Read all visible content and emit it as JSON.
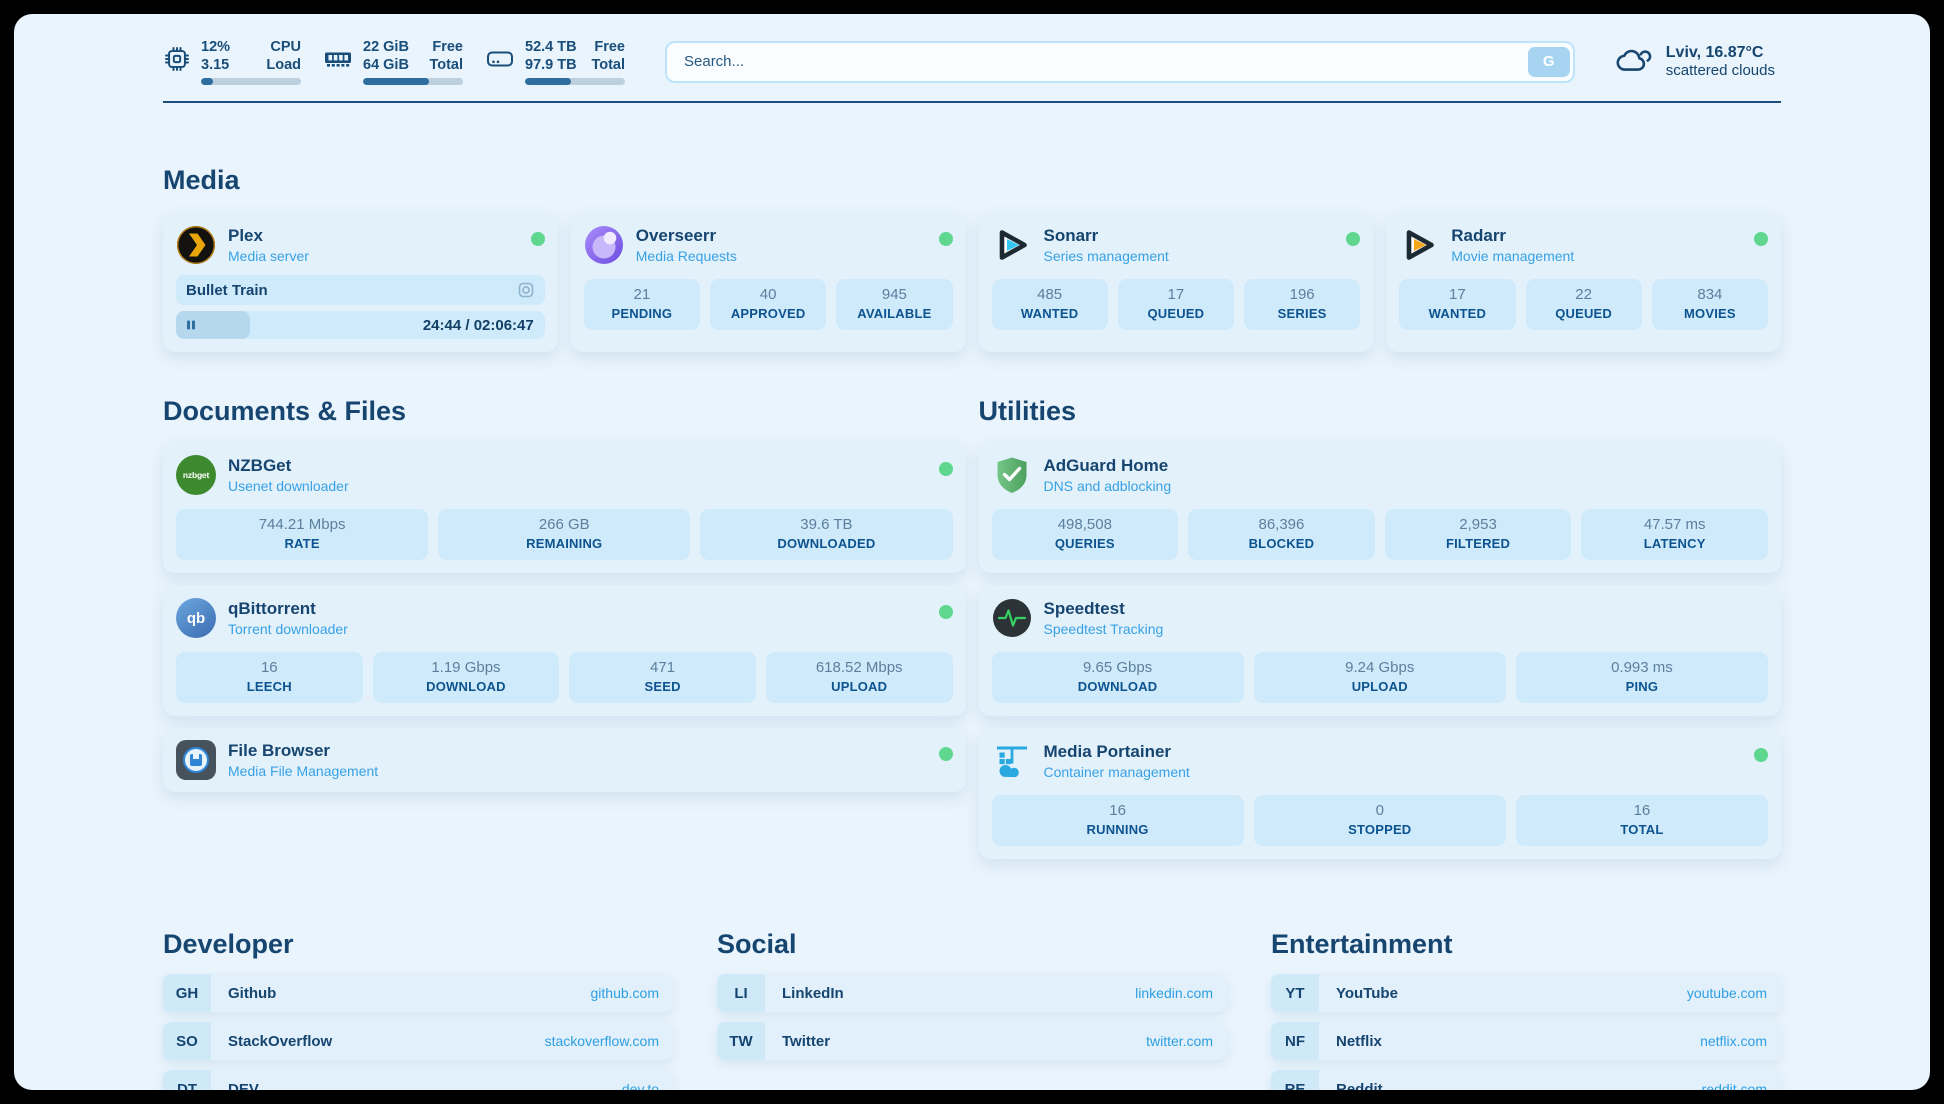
{
  "colors": {
    "status_online": "#5fd78f",
    "accent_blue": "#2e9fe0",
    "navy": "#16456f"
  },
  "header": {
    "metrics": [
      {
        "id": "cpu",
        "icon": "cpu-icon",
        "values": [
          "12%",
          "3.15"
        ],
        "labels": [
          "CPU",
          "Load"
        ],
        "progress": 12
      },
      {
        "id": "ram",
        "icon": "ram-icon",
        "values": [
          "22 GiB",
          "64 GiB"
        ],
        "labels": [
          "Free",
          "Total"
        ],
        "progress": 66
      },
      {
        "id": "disk",
        "icon": "disk-icon",
        "values": [
          "52.4 TB",
          "97.9 TB"
        ],
        "labels": [
          "Free",
          "Total"
        ],
        "progress": 46
      }
    ],
    "search": {
      "placeholder": "Search...",
      "engine": "G"
    },
    "weather": {
      "location": "Lviv, 16.87°C",
      "condition": "scattered clouds"
    }
  },
  "media": {
    "title": "Media",
    "plex": {
      "name": "Plex",
      "subtitle": "Media server",
      "now_playing": "Bullet Train",
      "time": "24:44 / 02:06:47",
      "progress_percent": 20
    },
    "overseerr": {
      "name": "Overseerr",
      "subtitle": "Media Requests",
      "stats": [
        {
          "value": "21",
          "label": "PENDING"
        },
        {
          "value": "40",
          "label": "APPROVED"
        },
        {
          "value": "945",
          "label": "AVAILABLE"
        }
      ]
    },
    "sonarr": {
      "name": "Sonarr",
      "subtitle": "Series management",
      "stats": [
        {
          "value": "485",
          "label": "WANTED"
        },
        {
          "value": "17",
          "label": "QUEUED"
        },
        {
          "value": "196",
          "label": "SERIES"
        }
      ]
    },
    "radarr": {
      "name": "Radarr",
      "subtitle": "Movie management",
      "stats": [
        {
          "value": "17",
          "label": "WANTED"
        },
        {
          "value": "22",
          "label": "QUEUED"
        },
        {
          "value": "834",
          "label": "MOVIES"
        }
      ]
    }
  },
  "documents": {
    "title": "Documents & Files",
    "nzbget": {
      "name": "NZBGet",
      "subtitle": "Usenet downloader",
      "icon_text": "nzbget",
      "stats": [
        {
          "value": "744.21 Mbps",
          "label": "RATE"
        },
        {
          "value": "266 GB",
          "label": "REMAINING"
        },
        {
          "value": "39.6 TB",
          "label": "DOWNLOADED"
        }
      ]
    },
    "qbittorrent": {
      "name": "qBittorrent",
      "subtitle": "Torrent downloader",
      "icon_text": "qb",
      "stats": [
        {
          "value": "16",
          "label": "LEECH"
        },
        {
          "value": "1.19 Gbps",
          "label": "DOWNLOAD"
        },
        {
          "value": "471",
          "label": "SEED"
        },
        {
          "value": "618.52 Mbps",
          "label": "UPLOAD"
        }
      ]
    },
    "filebrowser": {
      "name": "File Browser",
      "subtitle": "Media File Management"
    }
  },
  "utilities": {
    "title": "Utilities",
    "adguard": {
      "name": "AdGuard Home",
      "subtitle": "DNS and adblocking",
      "stats": [
        {
          "value": "498,508",
          "label": "QUERIES"
        },
        {
          "value": "86,396",
          "label": "BLOCKED"
        },
        {
          "value": "2,953",
          "label": "FILTERED"
        },
        {
          "value": "47.57 ms",
          "label": "LATENCY"
        }
      ]
    },
    "speedtest": {
      "name": "Speedtest",
      "subtitle": "Speedtest Tracking",
      "stats": [
        {
          "value": "9.65 Gbps",
          "label": "DOWNLOAD"
        },
        {
          "value": "9.24 Gbps",
          "label": "UPLOAD"
        },
        {
          "value": "0.993 ms",
          "label": "PING"
        }
      ]
    },
    "portainer": {
      "name": "Media Portainer",
      "subtitle": "Container management",
      "stats": [
        {
          "value": "16",
          "label": "RUNNING"
        },
        {
          "value": "0",
          "label": "STOPPED"
        },
        {
          "value": "16",
          "label": "TOTAL"
        }
      ]
    }
  },
  "links": {
    "developer": {
      "title": "Developer",
      "items": [
        {
          "abbr": "GH",
          "name": "Github",
          "url": "github.com"
        },
        {
          "abbr": "SO",
          "name": "StackOverflow",
          "url": "stackoverflow.com"
        },
        {
          "abbr": "DT",
          "name": "DEV",
          "url": "dev.to"
        }
      ]
    },
    "social": {
      "title": "Social",
      "items": [
        {
          "abbr": "LI",
          "name": "LinkedIn",
          "url": "linkedin.com"
        },
        {
          "abbr": "TW",
          "name": "Twitter",
          "url": "twitter.com"
        }
      ]
    },
    "entertainment": {
      "title": "Entertainment",
      "items": [
        {
          "abbr": "YT",
          "name": "YouTube",
          "url": "youtube.com"
        },
        {
          "abbr": "NF",
          "name": "Netflix",
          "url": "netflix.com"
        },
        {
          "abbr": "RE",
          "name": "Reddit",
          "url": "reddit.com"
        }
      ]
    }
  }
}
